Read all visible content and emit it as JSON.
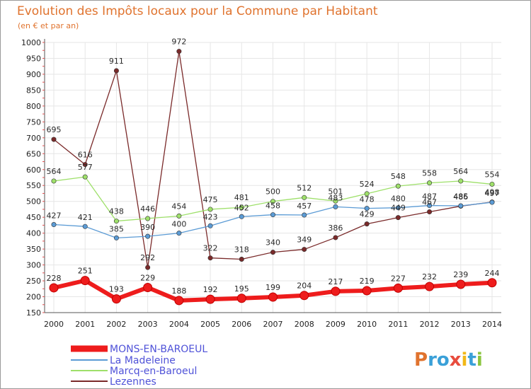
{
  "chart_data": {
    "type": "line",
    "title": "Evolution des Impôts locaux pour la Commune par Habitant",
    "subtitle": "(en € et par an)",
    "xlabel": "",
    "ylabel": "",
    "ylim": [
      150,
      1000
    ],
    "grid": true,
    "legend_position": "bottom-left",
    "categories": [
      "2000",
      "2001",
      "2002",
      "2003",
      "2004",
      "2005",
      "2006",
      "2007",
      "2008",
      "2009",
      "2010",
      "2011",
      "2012",
      "2013",
      "2014"
    ],
    "y_ticks": [
      150,
      200,
      250,
      300,
      350,
      400,
      450,
      500,
      550,
      600,
      650,
      700,
      750,
      800,
      850,
      900,
      950,
      1000
    ],
    "series": [
      {
        "name": "MONS-EN-BAROEUL",
        "color": "#ee1c1c",
        "values": [
          228,
          251,
          193,
          229,
          188,
          192,
          195,
          199,
          204,
          217,
          219,
          227,
          232,
          239,
          244
        ]
      },
      {
        "name": "La Madeleine",
        "color": "#5b9bd5",
        "values": [
          427,
          421,
          385,
          390,
          400,
          423,
          452,
          458,
          457,
          483,
          478,
          480,
          487,
          486,
          497
        ]
      },
      {
        "name": "Marcq-en-Baroeul",
        "color": "#9ee06a",
        "values": [
          564,
          577,
          438,
          446,
          454,
          475,
          481,
          500,
          512,
          501,
          524,
          548,
          558,
          564,
          554
        ]
      },
      {
        "name": "Lezennes",
        "color": "#7a2a2a",
        "values": [
          695,
          616,
          911,
          292,
          972,
          322,
          318,
          340,
          349,
          386,
          429,
          449,
          467,
          485,
          498
        ]
      }
    ]
  },
  "logo": {
    "text": "Proxiti"
  },
  "colors": {
    "title": "#e0732e",
    "legend_text": "#4f52d8",
    "grid": "#e6e6e6"
  }
}
